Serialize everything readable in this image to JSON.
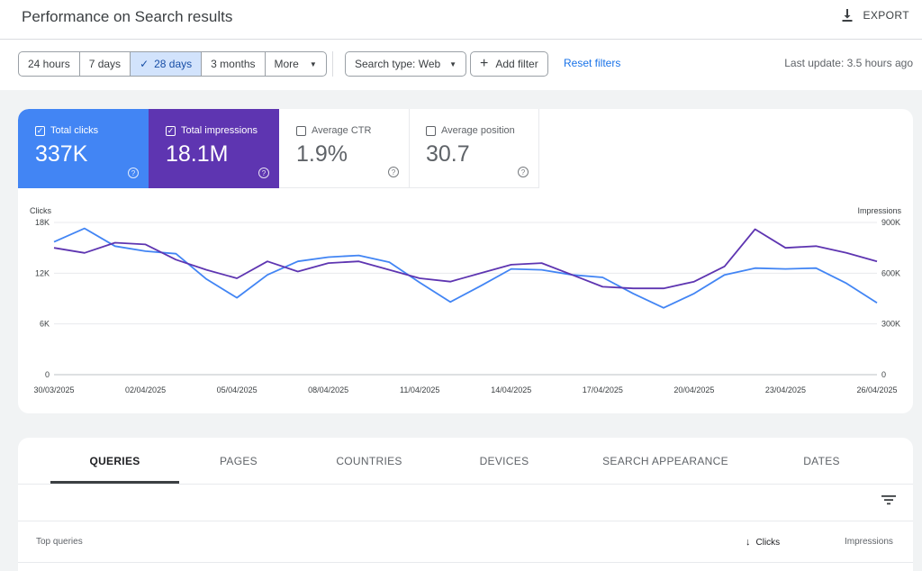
{
  "header": {
    "title": "Performance on Search results",
    "export_label": "EXPORT",
    "export_icon": "download-icon"
  },
  "toolbar": {
    "date_ranges": [
      "24 hours",
      "7 days",
      "28 days",
      "3 months",
      "More"
    ],
    "active_range": "28 days",
    "search_type_label": "Search type: Web",
    "add_filter_label": "Add filter",
    "reset_filters_label": "Reset filters",
    "last_update": "Last update: 3.5 hours ago"
  },
  "metrics": {
    "total_clicks": {
      "label": "Total clicks",
      "value": "337K",
      "checked": true,
      "color": "#4285f4"
    },
    "total_impressions": {
      "label": "Total impressions",
      "value": "18.1M",
      "checked": true,
      "color": "#5e35b1"
    },
    "average_ctr": {
      "label": "Average CTR",
      "value": "1.9%",
      "checked": false
    },
    "average_position": {
      "label": "Average position",
      "value": "30.7",
      "checked": false
    }
  },
  "chart_data": {
    "type": "line",
    "left_axis_label": "Clicks",
    "right_axis_label": "Impressions",
    "y_left_ticks": [
      "0",
      "6K",
      "12K",
      "18K"
    ],
    "y_right_ticks": [
      "0",
      "300K",
      "600K",
      "900K"
    ],
    "y_left_range": [
      0,
      18000
    ],
    "y_right_range": [
      0,
      900000
    ],
    "x_tick_labels": [
      "30/03/2025",
      "02/04/2025",
      "05/04/2025",
      "08/04/2025",
      "11/04/2025",
      "14/04/2025",
      "17/04/2025",
      "20/04/2025",
      "23/04/2025",
      "26/04/2025"
    ],
    "x": [
      "30/03/2025",
      "31/03/2025",
      "01/04/2025",
      "02/04/2025",
      "03/04/2025",
      "04/04/2025",
      "05/04/2025",
      "06/04/2025",
      "07/04/2025",
      "08/04/2025",
      "09/04/2025",
      "10/04/2025",
      "11/04/2025",
      "12/04/2025",
      "13/04/2025",
      "14/04/2025",
      "15/04/2025",
      "16/04/2025",
      "17/04/2025",
      "18/04/2025",
      "19/04/2025",
      "20/04/2025",
      "21/04/2025",
      "22/04/2025",
      "23/04/2025",
      "24/04/2025",
      "25/04/2025",
      "26/04/2025"
    ],
    "grid": true,
    "series": [
      {
        "axis": "left",
        "color": "#4285f4",
        "values": [
          15700,
          17300,
          15200,
          14600,
          14300,
          11300,
          9100,
          11800,
          13400,
          13900,
          14100,
          13300,
          10900,
          8600,
          10500,
          12500,
          12400,
          11800,
          11500,
          9600,
          7900,
          9600,
          11800,
          12600,
          12500,
          12600,
          10800,
          8500
        ]
      },
      {
        "axis": "right",
        "color": "#5e35b1",
        "values": [
          750000,
          720000,
          780000,
          770000,
          680000,
          620000,
          570000,
          670000,
          610000,
          660000,
          670000,
          620000,
          570000,
          550000,
          600000,
          650000,
          660000,
          590000,
          520000,
          510000,
          510000,
          550000,
          640000,
          860000,
          750000,
          760000,
          720000,
          670000
        ]
      }
    ]
  },
  "table": {
    "tabs": [
      "QUERIES",
      "PAGES",
      "COUNTRIES",
      "DEVICES",
      "SEARCH APPEARANCE",
      "DATES"
    ],
    "active_tab": "QUERIES",
    "filter_icon": "filter-list-icon",
    "col_query": "Top queries",
    "col_clicks": "Clicks",
    "col_impressions": "Impressions",
    "sort_icon": "arrow-down-icon"
  }
}
